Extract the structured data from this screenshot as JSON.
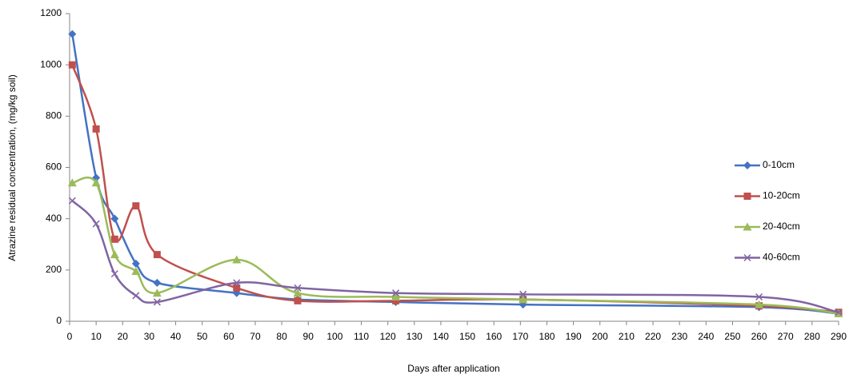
{
  "chart_data": {
    "type": "line",
    "x_label": "Days after application",
    "y_label": "Atrazine residual concentration, (mg/kg soil)",
    "x": [
      1,
      10,
      17,
      25,
      33,
      63,
      86,
      123,
      171,
      260,
      290
    ],
    "series": [
      {
        "name": "0-10cm",
        "color": "#4472c4",
        "marker": "diamond",
        "values": [
          1120,
          560,
          400,
          225,
          150,
          110,
          85,
          75,
          65,
          55,
          30
        ]
      },
      {
        "name": "10-20cm",
        "color": "#c0504d",
        "marker": "square",
        "values": [
          1000,
          750,
          320,
          450,
          260,
          130,
          80,
          80,
          85,
          60,
          35
        ]
      },
      {
        "name": "20-40cm",
        "color": "#9bbb59",
        "marker": "triangle",
        "values": [
          540,
          540,
          260,
          195,
          110,
          240,
          110,
          95,
          85,
          65,
          30
        ]
      },
      {
        "name": "40-60cm",
        "color": "#8064a2",
        "marker": "x",
        "values": [
          470,
          380,
          185,
          100,
          75,
          150,
          130,
          110,
          105,
          95,
          35
        ]
      }
    ],
    "xlim": [
      0,
      290
    ],
    "xticks": [
      0,
      10,
      20,
      30,
      40,
      50,
      60,
      70,
      80,
      90,
      100,
      110,
      120,
      130,
      140,
      150,
      160,
      170,
      180,
      190,
      200,
      210,
      220,
      230,
      240,
      250,
      260,
      270,
      280,
      290
    ],
    "ylim": [
      0,
      1200
    ],
    "yticks": [
      0,
      200,
      400,
      600,
      800,
      1000,
      1200
    ],
    "grid": false,
    "legend": "right",
    "smooth": true
  }
}
